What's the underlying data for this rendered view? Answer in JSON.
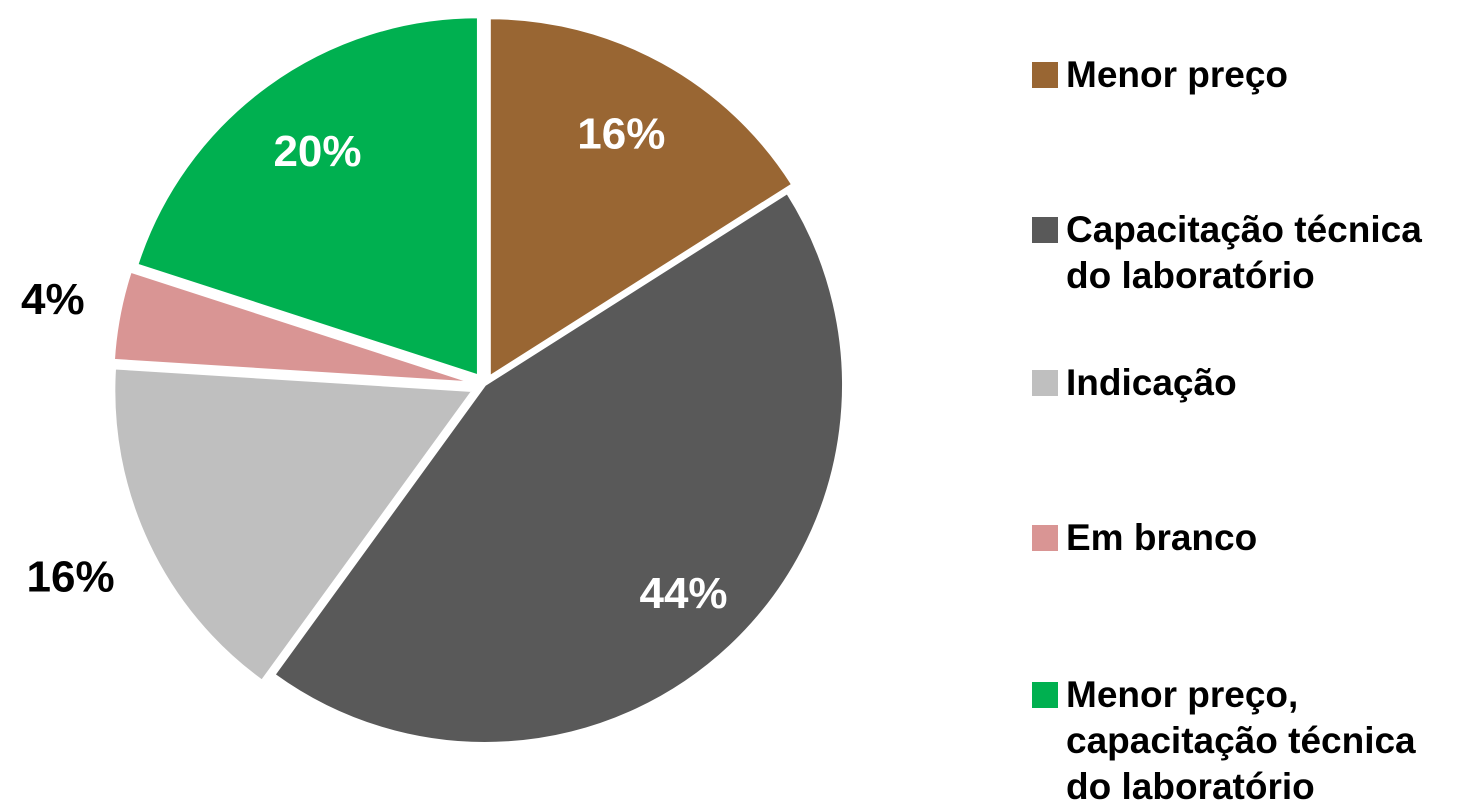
{
  "chart_data": {
    "type": "pie",
    "categories": [
      "Menor preço",
      "Capacitação técnica do laboratório",
      "Indicação",
      "Em branco",
      "Menor preço, capacitação técnica do laboratório"
    ],
    "values": [
      16,
      44,
      16,
      4,
      20
    ],
    "value_labels": [
      "16%",
      "44%",
      "16%",
      "4%",
      "20%"
    ],
    "colors": [
      "#996633",
      "#595959",
      "#bfbfbf",
      "#d99594",
      "#00b050"
    ],
    "legend": "right"
  }
}
